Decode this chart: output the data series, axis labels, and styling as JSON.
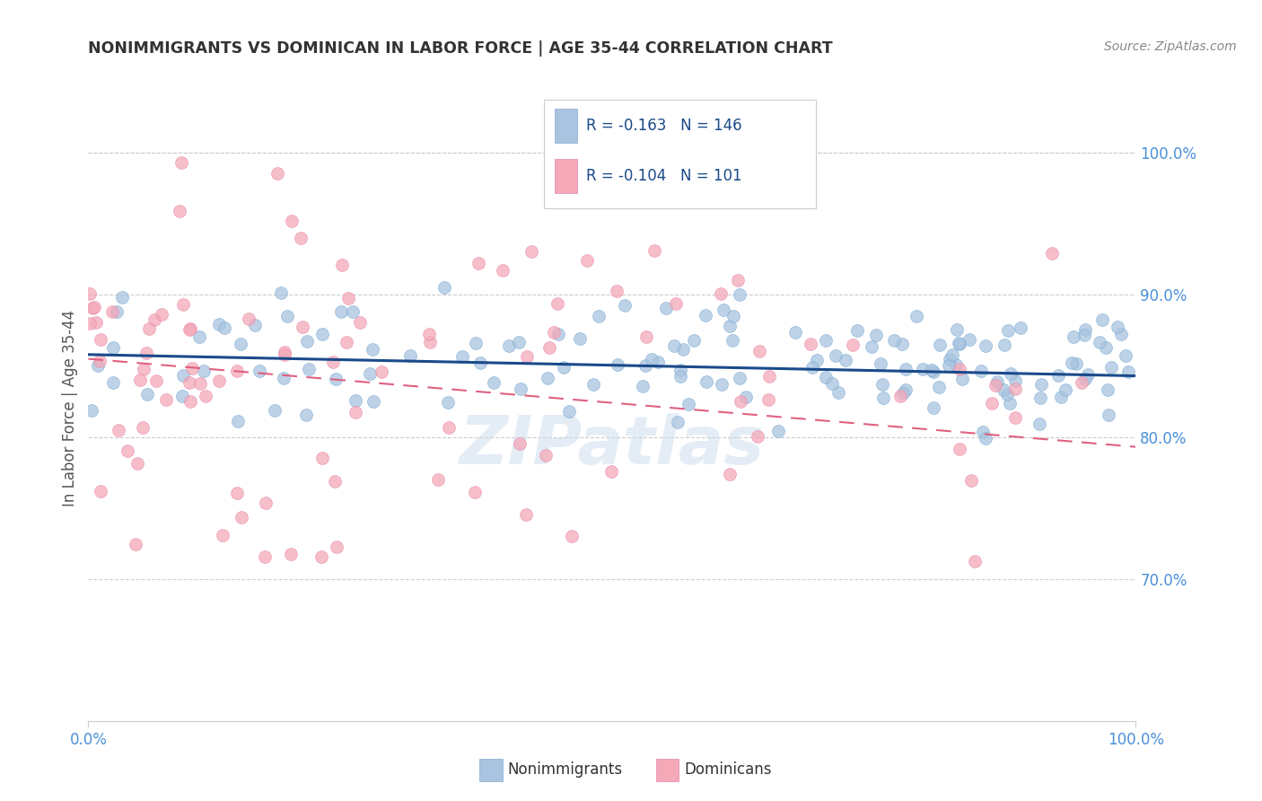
{
  "title": "NONIMMIGRANTS VS DOMINICAN IN LABOR FORCE | AGE 35-44 CORRELATION CHART",
  "source": "Source: ZipAtlas.com",
  "ylabel": "In Labor Force | Age 35-44",
  "xlim": [
    0.0,
    1.0
  ],
  "ylim": [
    0.6,
    1.04
  ],
  "yticks": [
    0.7,
    0.8,
    0.9,
    1.0
  ],
  "ytick_labels": [
    "70.0%",
    "80.0%",
    "90.0%",
    "100.0%"
  ],
  "xtick_labels": [
    "0.0%",
    "100.0%"
  ],
  "xticks": [
    0.0,
    1.0
  ],
  "blue_R": -0.163,
  "blue_N": 146,
  "pink_R": -0.104,
  "pink_N": 101,
  "blue_scatter_color": "#a8c4e0",
  "pink_scatter_color": "#f4a8b8",
  "blue_line_color": "#1a4a8a",
  "pink_line_color": "#e06080",
  "legend_blue_label": "Nonimmigrants",
  "legend_pink_label": "Dominicans",
  "watermark": "ZIPatlas",
  "background_color": "#ffffff",
  "grid_color": "#cccccc",
  "axis_label_color": "#4a90d9",
  "title_color": "#333333",
  "source_color": "#888888",
  "blue_line_y_start": 0.858,
  "blue_line_y_end": 0.843,
  "pink_line_y_start": 0.855,
  "pink_line_y_end": 0.793
}
